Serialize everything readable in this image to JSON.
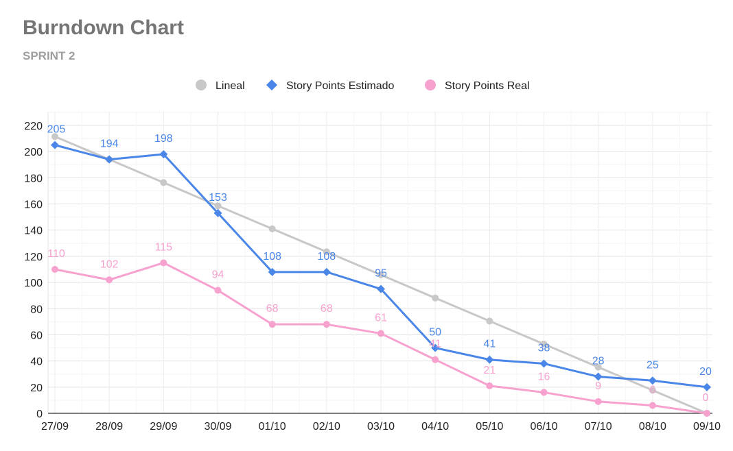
{
  "title": "Burndown Chart",
  "subtitle": "SPRINT 2",
  "chart_data": {
    "type": "line",
    "categories": [
      "27/09",
      "28/09",
      "29/09",
      "30/09",
      "01/10",
      "02/10",
      "03/10",
      "04/10",
      "05/10",
      "06/10",
      "07/10",
      "08/10",
      "09/10"
    ],
    "ylim": [
      0,
      220
    ],
    "yticks": [
      0,
      20,
      40,
      60,
      80,
      100,
      120,
      140,
      160,
      180,
      200,
      220
    ],
    "grid": true,
    "legend_position": "top-center",
    "series": [
      {
        "name": "Lineal",
        "color": "#c8c8c8",
        "marker": "circle",
        "show_labels": false,
        "values": [
          211.5,
          194,
          176.3,
          158.6,
          141,
          123.4,
          105.8,
          88.1,
          70.5,
          52.9,
          35.3,
          17.6,
          0
        ]
      },
      {
        "name": "Story Points Estimado",
        "color": "#4a86e8",
        "marker": "diamond",
        "show_labels": true,
        "values": [
          205,
          194,
          198,
          153,
          108,
          108,
          95,
          50,
          41,
          38,
          28,
          25,
          20
        ]
      },
      {
        "name": "Story Points Real",
        "color": "#f7a1cf",
        "marker": "circle",
        "show_labels": true,
        "values": [
          110,
          102,
          115,
          94,
          68,
          68,
          61,
          41,
          21,
          16,
          9,
          6,
          0
        ]
      }
    ]
  }
}
